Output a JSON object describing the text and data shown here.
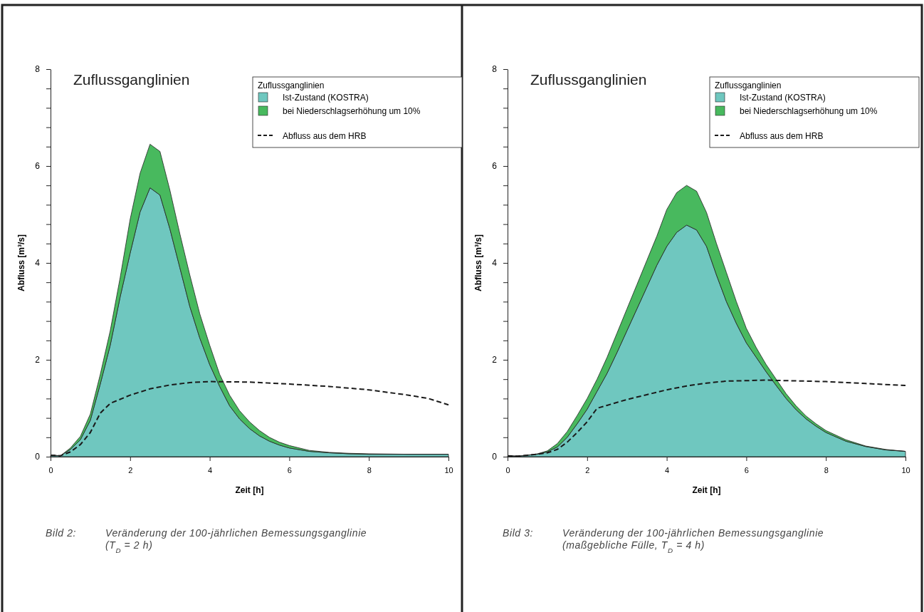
{
  "chart_data": [
    {
      "type": "area",
      "title": "Zuflussganglinien",
      "xlabel": "Zeit [h]",
      "ylabel": "Abfluss [m³/s]",
      "legend_title": "Zuflussganglinien",
      "legend": "top right",
      "stacked": true,
      "grid": false,
      "marker": "none",
      "x": [
        0,
        0.25,
        0.5,
        0.75,
        1,
        1.25,
        1.5,
        1.75,
        2,
        2.25,
        2.5,
        2.75,
        3,
        3.25,
        3.5,
        3.75,
        4,
        4.25,
        4.5,
        4.75,
        5,
        5.25,
        5.5,
        5.75,
        6,
        6.5,
        7,
        7.5,
        8,
        9,
        10
      ],
      "series": [
        {
          "name": "Ist-Zustand (KOSTRA)",
          "color": "#6fc7bf",
          "values": [
            0.03,
            0.02,
            0.15,
            0.35,
            0.75,
            1.5,
            2.3,
            3.3,
            4.2,
            5.05,
            5.55,
            5.4,
            4.7,
            3.9,
            3.1,
            2.45,
            1.9,
            1.45,
            1.05,
            0.78,
            0.58,
            0.43,
            0.32,
            0.24,
            0.18,
            0.11,
            0.08,
            0.06,
            0.05,
            0.05,
            0.05
          ]
        },
        {
          "name": "bei Niederschlagserhöhung um 10%",
          "color": "#48b95e",
          "values": [
            0,
            0,
            0.03,
            0.07,
            0.13,
            0.2,
            0.3,
            0.4,
            0.7,
            0.8,
            0.9,
            0.9,
            0.8,
            0.7,
            0.65,
            0.5,
            0.4,
            0.25,
            0.22,
            0.17,
            0.14,
            0.11,
            0.08,
            0.06,
            0.05,
            0.02,
            0.01,
            0.01,
            0.01,
            0,
            0
          ]
        },
        {
          "name": "Abfluss aus dem HRB",
          "type": "line",
          "line_style": "dashed",
          "color": "#1a1a1a",
          "x": [
            0,
            0.25,
            0.5,
            0.75,
            1,
            1.25,
            1.5,
            2,
            2.5,
            3,
            3.5,
            4,
            5,
            6,
            7,
            8,
            9,
            9.5,
            10
          ],
          "values": [
            0.03,
            0.02,
            0.1,
            0.25,
            0.5,
            0.9,
            1.1,
            1.27,
            1.4,
            1.48,
            1.53,
            1.55,
            1.54,
            1.5,
            1.45,
            1.38,
            1.27,
            1.2,
            1.07
          ]
        }
      ],
      "xlim": [
        0,
        10
      ],
      "xticks": [
        0,
        2,
        4,
        6,
        8,
        10
      ],
      "ylim": [
        0,
        8
      ],
      "yticks": [
        0,
        {
          "value": 0.4,
          "label": null
        },
        {
          "value": 0.8,
          "label": null
        },
        {
          "value": 1.2,
          "label": null
        },
        {
          "value": 1.6,
          "label": null
        },
        2,
        {
          "value": 2.4,
          "label": null
        },
        {
          "value": 2.8,
          "label": null
        },
        {
          "value": 3.2,
          "label": null
        },
        {
          "value": 3.6,
          "label": null
        },
        4,
        {
          "value": 4.4,
          "label": null
        },
        {
          "value": 4.8,
          "label": null
        },
        {
          "value": 5.2,
          "label": null
        },
        {
          "value": 5.6,
          "label": null
        },
        6,
        {
          "value": 6.4,
          "label": null
        },
        {
          "value": 6.8,
          "label": null
        },
        {
          "value": 7.2,
          "label": null
        },
        {
          "value": 7.6,
          "label": null
        },
        8
      ],
      "annotations": [
        "Bild 2:",
        "Veränderung der 100-jährlichen Bemessungsganglinie",
        "(T$_{D}$ = 2 h)"
      ]
    },
    {
      "type": "area",
      "title": "Zuflussganglinien",
      "xlabel": "Zeit [h]",
      "ylabel": "Abfluss [m³/s]",
      "legend_title": "Zuflussganglinien",
      "legend": "top right",
      "stacked": true,
      "grid": false,
      "marker": "none",
      "x": [
        0,
        0.25,
        0.5,
        0.75,
        1,
        1.25,
        1.5,
        1.75,
        2,
        2.25,
        2.5,
        2.75,
        3,
        3.25,
        3.5,
        3.75,
        4,
        4.25,
        4.5,
        4.75,
        5,
        5.25,
        5.5,
        5.75,
        6,
        6.25,
        6.5,
        6.75,
        7,
        7.25,
        7.5,
        7.75,
        8,
        8.5,
        9,
        9.5,
        10
      ],
      "series": [
        {
          "name": "Ist-Zustand (KOSTRA)",
          "color": "#6fc7bf",
          "values": [
            0.02,
            0.01,
            0.03,
            0.05,
            0.1,
            0.2,
            0.4,
            0.68,
            0.98,
            1.35,
            1.72,
            2.15,
            2.6,
            3.05,
            3.5,
            3.95,
            4.34,
            4.63,
            4.78,
            4.68,
            4.34,
            3.75,
            3.2,
            2.75,
            2.35,
            2.05,
            1.75,
            1.47,
            1.2,
            0.97,
            0.78,
            0.63,
            0.5,
            0.32,
            0.21,
            0.14,
            0.11
          ]
        },
        {
          "name": "bei Niederschlagserhöhung um 10%",
          "color": "#48b95e",
          "values": [
            0,
            0,
            0,
            0.01,
            0.02,
            0.07,
            0.12,
            0.17,
            0.22,
            0.25,
            0.33,
            0.4,
            0.45,
            0.5,
            0.55,
            0.6,
            0.76,
            0.82,
            0.82,
            0.8,
            0.7,
            0.65,
            0.6,
            0.45,
            0.3,
            0.2,
            0.15,
            0.13,
            0.1,
            0.08,
            0.06,
            0.05,
            0.04,
            0.03,
            0.01,
            0.01,
            0
          ]
        },
        {
          "name": "Abfluss aus dem HRB",
          "type": "line",
          "line_style": "dashed",
          "color": "#1a1a1a",
          "x": [
            0,
            0.25,
            0.5,
            0.75,
            1,
            1.25,
            1.5,
            1.75,
            2,
            2.25,
            2.5,
            3,
            3.5,
            4,
            4.5,
            5,
            5.5,
            6,
            6.5,
            7,
            8,
            9,
            10
          ],
          "values": [
            0.02,
            0.01,
            0.03,
            0.05,
            0.08,
            0.15,
            0.3,
            0.5,
            0.72,
            1,
            1.06,
            1.18,
            1.28,
            1.38,
            1.46,
            1.52,
            1.56,
            1.57,
            1.58,
            1.57,
            1.55,
            1.51,
            1.47
          ]
        }
      ],
      "xlim": [
        0,
        10
      ],
      "xticks": [
        0,
        2,
        4,
        6,
        8,
        10
      ],
      "ylim": [
        0,
        8
      ],
      "yticks": [
        0,
        {
          "value": 0.4,
          "label": null
        },
        {
          "value": 0.8,
          "label": null
        },
        {
          "value": 1.2,
          "label": null
        },
        {
          "value": 1.6,
          "label": null
        },
        2,
        {
          "value": 2.4,
          "label": null
        },
        {
          "value": 2.8,
          "label": null
        },
        {
          "value": 3.2,
          "label": null
        },
        {
          "value": 3.6,
          "label": null
        },
        4,
        {
          "value": 4.4,
          "label": null
        },
        {
          "value": 4.8,
          "label": null
        },
        {
          "value": 5.2,
          "label": null
        },
        {
          "value": 5.6,
          "label": null
        },
        6,
        {
          "value": 6.4,
          "label": null
        },
        {
          "value": 6.8,
          "label": null
        },
        {
          "value": 7.2,
          "label": null
        },
        {
          "value": 7.6,
          "label": null
        },
        8
      ],
      "annotations": [
        "Bild 3:",
        "Veränderung der 100-jährlichen Bemessungsganglinie",
        "(maßgebliche Fülle, T$_{D}$ = 4 h)"
      ]
    }
  ]
}
